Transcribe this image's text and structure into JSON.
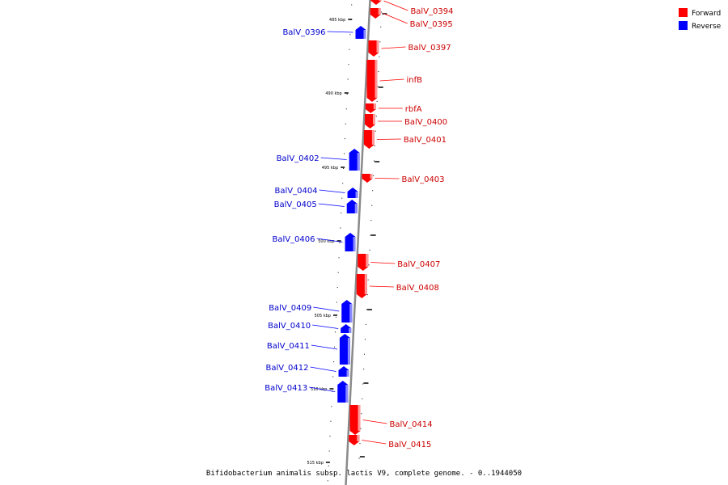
{
  "caption": "Bifidobacterium animalis subsp. lactis V9, complete genome. - 0..1944050",
  "legend": [
    {
      "label": "Forward",
      "color": "#ff0000"
    },
    {
      "label": "Reverse",
      "color": "#0000ff"
    }
  ],
  "ticks": [
    "485 kbp",
    "490 kbp",
    "495 kbp",
    "500 kbp",
    "505 kbp",
    "510 kbp",
    "515 kbp"
  ],
  "genes": [
    {
      "name": "BalV_0394",
      "strand": "forward"
    },
    {
      "name": "BalV_0395",
      "strand": "forward"
    },
    {
      "name": "BalV_0396",
      "strand": "reverse"
    },
    {
      "name": "BalV_0397",
      "strand": "forward"
    },
    {
      "name": "infB",
      "strand": "forward"
    },
    {
      "name": "rbfA",
      "strand": "forward"
    },
    {
      "name": "BalV_0400",
      "strand": "forward"
    },
    {
      "name": "BalV_0401",
      "strand": "forward"
    },
    {
      "name": "BalV_0402",
      "strand": "reverse"
    },
    {
      "name": "BalV_0403",
      "strand": "forward"
    },
    {
      "name": "BalV_0404",
      "strand": "reverse"
    },
    {
      "name": "BalV_0405",
      "strand": "reverse"
    },
    {
      "name": "BalV_0406",
      "strand": "reverse"
    },
    {
      "name": "BalV_0407",
      "strand": "forward"
    },
    {
      "name": "BalV_0408",
      "strand": "forward"
    },
    {
      "name": "BalV_0409",
      "strand": "reverse"
    },
    {
      "name": "BalV_0410",
      "strand": "reverse"
    },
    {
      "name": "BalV_0411",
      "strand": "reverse"
    },
    {
      "name": "BalV_0412",
      "strand": "reverse"
    },
    {
      "name": "BalV_0413",
      "strand": "reverse"
    },
    {
      "name": "BalV_0414",
      "strand": "forward"
    },
    {
      "name": "BalV_0415",
      "strand": "forward"
    }
  ]
}
